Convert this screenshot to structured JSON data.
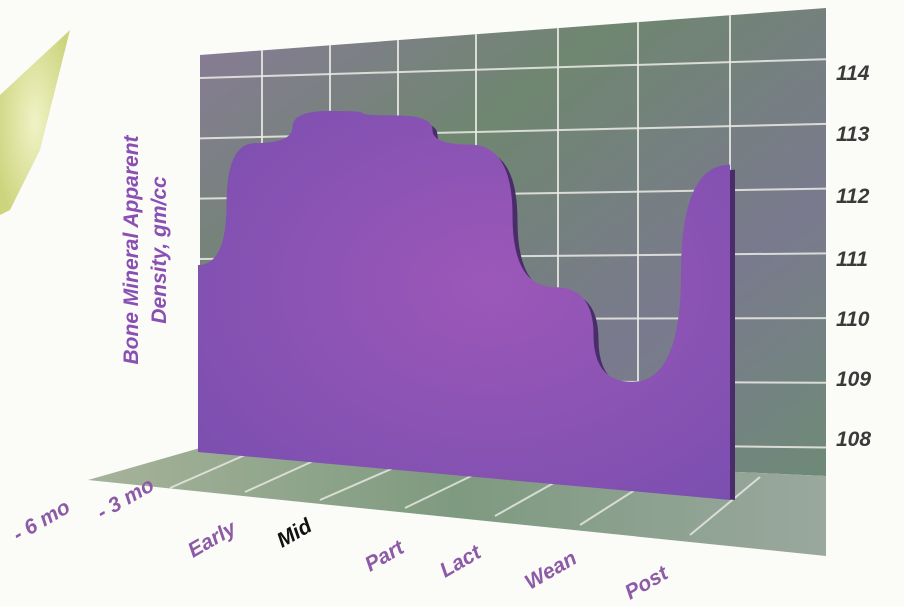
{
  "chart_data": {
    "type": "area",
    "ylabel_lines": [
      "Bone Mineral Apparent",
      "Density, gm/cc"
    ],
    "categories": [
      "- 6 mo",
      "- 3 mo",
      "Early",
      "Mid",
      "Part",
      "Lact",
      "Wean",
      "Post"
    ],
    "x": [
      "- 6 mo",
      "- 3 mo",
      "Early",
      "Mid",
      "Part",
      "Lact",
      "Wean",
      "Post"
    ],
    "y_ticks": [
      108,
      109,
      110,
      111,
      112,
      113,
      114
    ],
    "ylim": [
      108,
      114
    ],
    "values": [
      110.9,
      112.9,
      113.4,
      113.3,
      112.8,
      110.5,
      109.0,
      112.4
    ],
    "grid": true,
    "colors": {
      "area": "#8a55b8",
      "area_shadow": "#4a2c6a",
      "ylabel": "#8a4fb3",
      "x_tick_default": "#8c5aa6",
      "x_tick_highlight": "#111111",
      "wall": "#6f7a64",
      "grid": "#ecece6"
    },
    "x_tick_highlight_index": 3
  }
}
